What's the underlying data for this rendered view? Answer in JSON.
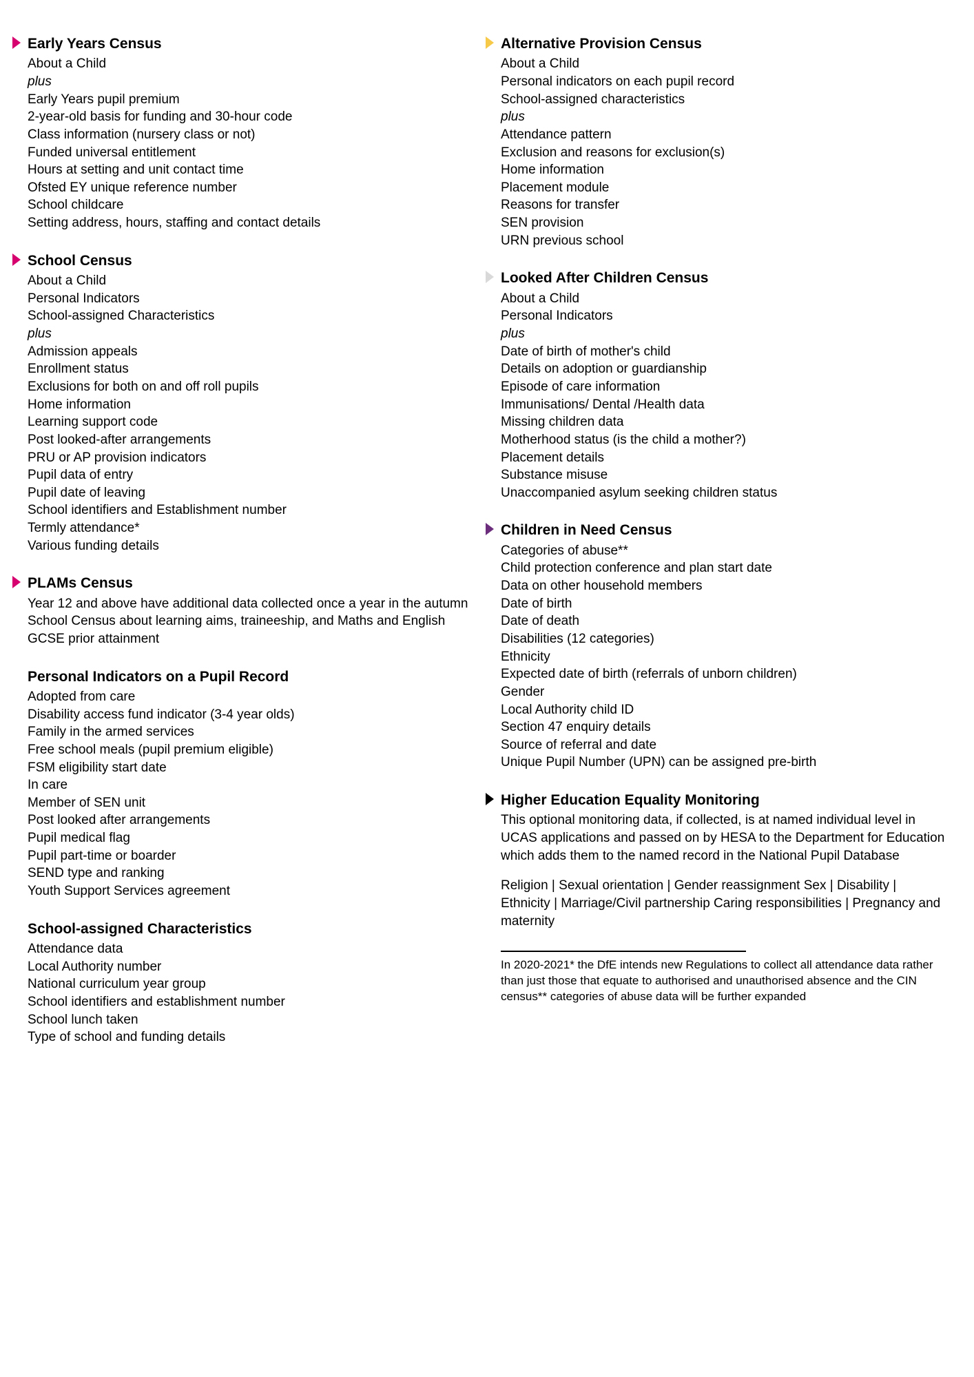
{
  "colors": {
    "magenta": "#d6006e",
    "yellow": "#f7c948",
    "grey": "#d9d9d9",
    "purple": "#6b2d7c",
    "black": "#000000",
    "background": "#ffffff",
    "text": "#000000"
  },
  "left": {
    "earlyYears": {
      "title": "Early Years Census",
      "lines": [
        "About a Child",
        {
          "text": "plus",
          "italic": true
        },
        "Early Years pupil premium",
        "2-year-old basis for funding and 30-hour code",
        "Class information (nursery class or not)",
        "Funded universal entitlement",
        "Hours at setting and unit contact time",
        "Ofsted EY unique reference number",
        "School childcare",
        "Setting address, hours, staffing and contact details"
      ]
    },
    "schoolCensus": {
      "title": "School Census",
      "lines": [
        "About a Child",
        "Personal Indicators",
        "School-assigned Characteristics",
        {
          "text": "plus",
          "italic": true
        },
        "Admission appeals",
        "Enrollment status",
        "Exclusions for both on and off roll pupils",
        "Home information",
        "Learning support code",
        "Post looked-after arrangements",
        "PRU or AP provision indicators",
        "Pupil data of entry",
        "Pupil date of leaving",
        "School identifiers and Establishment number",
        "Termly attendance*",
        "Various funding details"
      ]
    },
    "plams": {
      "title": "PLAMs Census",
      "para": "Year 12 and above have additional data collected once a year in the autumn School Census about learning aims, traineeship, and Maths and English GCSE prior attainment"
    },
    "personalIndicators": {
      "title": "Personal Indicators on a Pupil Record",
      "lines": [
        "Adopted from care",
        "Disability access fund indicator (3-4 year olds)",
        "Family in the armed services",
        "Free school meals (pupil premium eligible)",
        "FSM eligibility start date",
        "In care",
        "Member of SEN unit",
        "Post looked after arrangements",
        "Pupil medical flag",
        "Pupil part-time or boarder",
        "SEND type and ranking",
        "Youth Support Services agreement"
      ]
    },
    "schoolAssigned": {
      "title": "School-assigned Characteristics",
      "lines": [
        "Attendance data",
        "Local Authority number",
        "National curriculum year group",
        "School identifiers and establishment number",
        "School lunch taken",
        "Type of school and funding details"
      ]
    }
  },
  "right": {
    "altProvision": {
      "title": "Alternative Provision Census",
      "lines": [
        "About a Child",
        "Personal indicators on each pupil record",
        "School-assigned characteristics",
        {
          "text": "plus",
          "italic": true
        },
        "Attendance pattern",
        "Exclusion and reasons for exclusion(s)",
        "Home information",
        "Placement module",
        "Reasons for transfer",
        "SEN provision",
        "URN previous school"
      ]
    },
    "lookedAfter": {
      "title": "Looked After Children Census",
      "lines": [
        "About a Child",
        "Personal Indicators",
        {
          "text": "plus",
          "italic": true
        },
        "Date of birth of mother's child",
        "Details on adoption or guardianship",
        "Episode of care information",
        "Immunisations/ Dental /Health data",
        "Missing children data",
        "Motherhood status (is the child a mother?)",
        "Placement details",
        "Substance misuse",
        "Unaccompanied asylum seeking children status"
      ]
    },
    "childrenInNeed": {
      "title": "Children in Need Census",
      "lines": [
        "Categories of abuse**",
        "Child protection conference and plan start date",
        "Data on other household members",
        "Date of birth",
        "Date of death",
        "Disabilities (12 categories)",
        "Ethnicity",
        "Expected date of birth (referrals of unborn children)",
        "Gender",
        "Local Authority child ID",
        "Section 47 enquiry details",
        "Source of referral and date",
        "Unique Pupil Number (UPN) can be assigned pre-birth"
      ]
    },
    "higherEd": {
      "title": "Higher Education Equality Monitoring",
      "para1": "This optional monitoring data, if collected, is at named individual level in UCAS applications and passed on by HESA to the Department for Education which adds them to the named record in the National Pupil Database",
      "para2": "Religion | Sexual orientation | Gender reassignment Sex | Disability | Ethnicity | Marriage/Civil partnership Caring responsibilities | Pregnancy and maternity"
    },
    "footnote": "In 2020-2021* the DfE intends new Regulations to collect all attendance data rather than just those that equate to authorised and unauthorised absence and the CIN census** categories of abuse data will be further expanded"
  }
}
